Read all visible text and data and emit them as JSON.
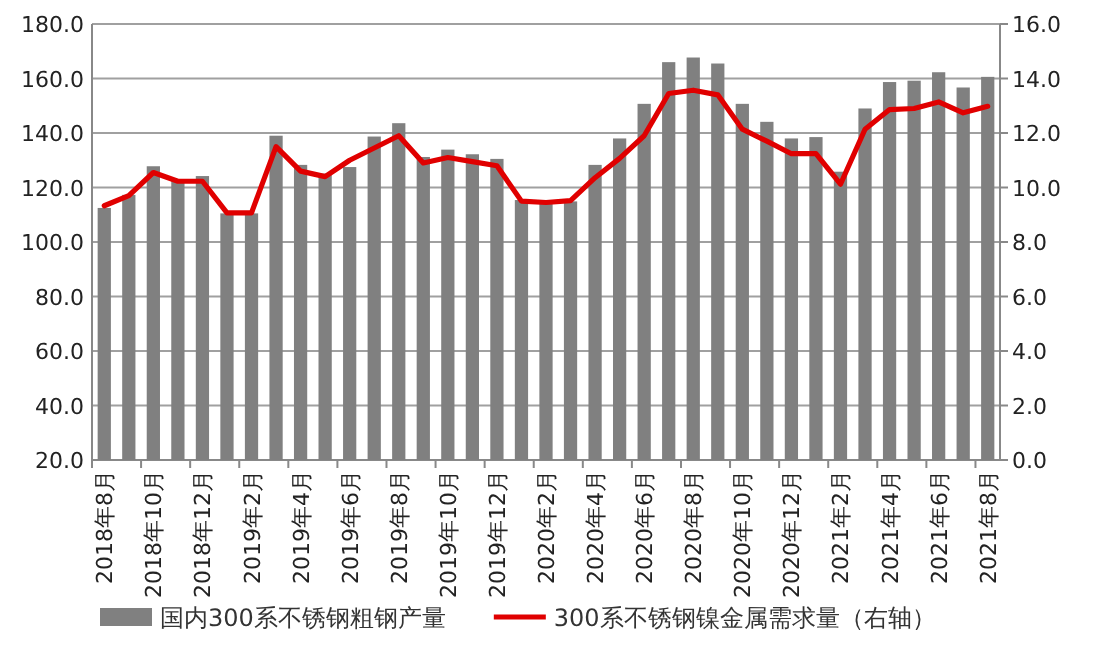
{
  "chart_data": {
    "type": "bar",
    "categories": [
      "2018年8月",
      null,
      "2018年10月",
      null,
      "2018年12月",
      null,
      "2019年2月",
      null,
      "2019年4月",
      null,
      "2019年6月",
      null,
      "2019年8月",
      null,
      "2019年10月",
      null,
      "2019年12月",
      null,
      "2020年2月",
      null,
      "2020年4月",
      null,
      "2020年6月",
      null,
      "2020年8月",
      null,
      "2020年10月",
      null,
      "2020年12月",
      null,
      "2021年2月",
      null,
      "2021年4月",
      null,
      "2021年6月",
      null,
      "2021年8月"
    ],
    "series": [
      {
        "name": "国内300系不锈钢粗钢产量",
        "color": "#808080",
        "values": [
          112.5,
          117.3,
          127.8,
          122.7,
          124.2,
          110.5,
          110.5,
          139,
          128.3,
          125.1,
          127.5,
          138.7,
          143.6,
          131.2,
          133.9,
          132.2,
          130.5,
          115.4,
          114.4,
          114.9,
          128.3,
          138,
          150.7,
          166,
          167.7,
          165.5,
          150.7,
          144.1,
          138,
          138.5,
          125.8,
          149,
          158.7,
          159.2,
          162.3,
          156.7,
          160.6
        ]
      },
      {
        "name": "300系不锈钢镍金属需求量（右轴）",
        "type": "line",
        "axis": "y2",
        "color": "#e00000",
        "values": [
          9.33,
          9.7,
          10.55,
          10.23,
          10.23,
          9.07,
          9.07,
          11.5,
          10.6,
          10.4,
          11,
          11.45,
          11.9,
          10.9,
          11.1,
          10.95,
          10.8,
          9.5,
          9.45,
          9.52,
          10.36,
          11.07,
          11.9,
          13.45,
          13.57,
          13.4,
          12.14,
          11.7,
          11.24,
          11.24,
          10.12,
          12.14,
          12.86,
          12.9,
          13.14,
          12.74,
          12.98
        ]
      }
    ],
    "ylim": [
      20,
      180
    ],
    "yticks": [
      {
        "value": 20,
        "label": "20.0"
      },
      {
        "value": 40,
        "label": "40.0"
      },
      {
        "value": 60,
        "label": "60.0"
      },
      {
        "value": 80,
        "label": "80.0"
      },
      {
        "value": 100,
        "label": "100.0"
      },
      {
        "value": 120,
        "label": "120.0"
      },
      {
        "value": 140,
        "label": "140.0"
      },
      {
        "value": 160,
        "label": "160.0"
      },
      {
        "value": 180,
        "label": "180.0"
      }
    ],
    "y2lim": [
      0,
      16
    ],
    "y2ticks": [
      {
        "value": 0,
        "label": "0.0"
      },
      {
        "value": 2,
        "label": "2.0"
      },
      {
        "value": 4,
        "label": "4.0"
      },
      {
        "value": 6,
        "label": "6.0"
      },
      {
        "value": 8,
        "label": "8.0"
      },
      {
        "value": 10,
        "label": "10.0"
      },
      {
        "value": 12,
        "label": "12.0"
      },
      {
        "value": 14,
        "label": "14.0"
      },
      {
        "value": 16,
        "label": "16.0"
      }
    ],
    "grid": "y",
    "legend": "bottom"
  }
}
